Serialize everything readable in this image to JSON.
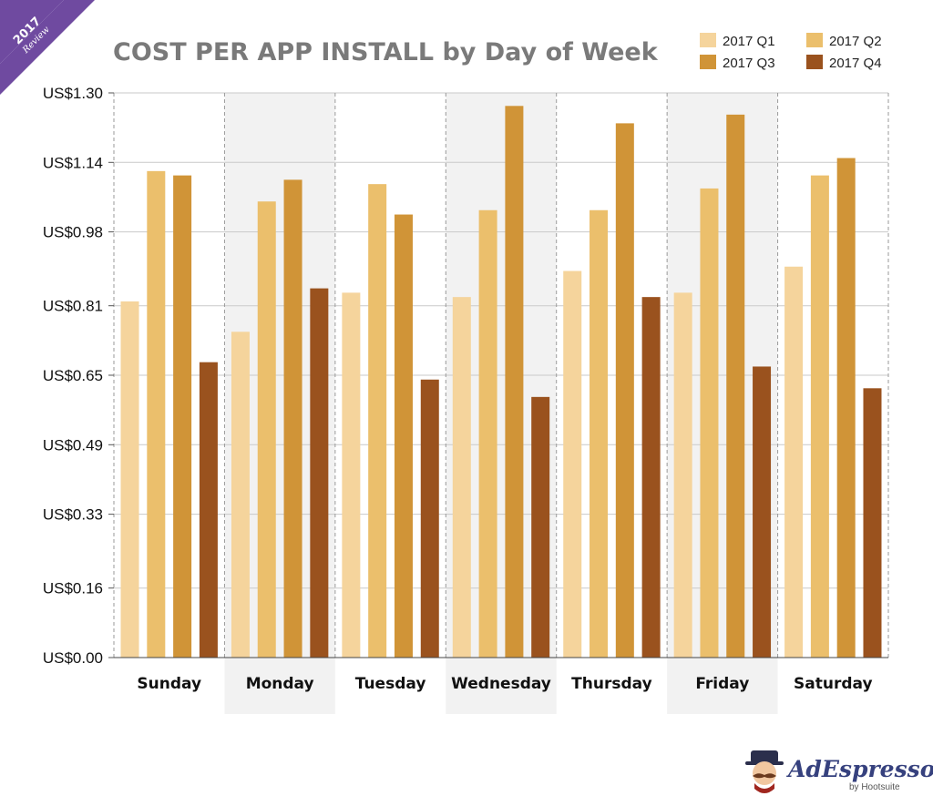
{
  "ribbon": {
    "year": "2017",
    "label": "Review"
  },
  "chart_data": {
    "type": "bar",
    "title": "COST PER APP INSTALL by Day of Week",
    "xlabel": "",
    "ylabel": "",
    "ylim": [
      0,
      1.3
    ],
    "grid": true,
    "legend_position": "top-right",
    "y_ticks": [
      {
        "value": 0.0,
        "label": "US$0.00"
      },
      {
        "value": 0.16,
        "label": "US$0.16"
      },
      {
        "value": 0.33,
        "label": "US$0.33"
      },
      {
        "value": 0.49,
        "label": "US$0.49"
      },
      {
        "value": 0.65,
        "label": "US$0.65"
      },
      {
        "value": 0.81,
        "label": "US$0.81"
      },
      {
        "value": 0.98,
        "label": "US$0.98"
      },
      {
        "value": 1.14,
        "label": "US$1.14"
      },
      {
        "value": 1.3,
        "label": "US$1.30"
      }
    ],
    "categories": [
      "Sunday",
      "Monday",
      "Tuesday",
      "Wednesday",
      "Thursday",
      "Friday",
      "Saturday"
    ],
    "shaded_categories": [
      "Monday",
      "Wednesday",
      "Friday"
    ],
    "series": [
      {
        "name": "2017 Q1",
        "color": "#f5d49c",
        "values": [
          0.82,
          0.75,
          0.84,
          0.83,
          0.89,
          0.84,
          0.9
        ]
      },
      {
        "name": "2017 Q2",
        "color": "#ebbf6c",
        "values": [
          1.12,
          1.05,
          1.09,
          1.03,
          1.03,
          1.08,
          1.11
        ]
      },
      {
        "name": "2017 Q3",
        "color": "#d09437",
        "values": [
          1.11,
          1.1,
          1.02,
          1.27,
          1.23,
          1.25,
          1.15
        ]
      },
      {
        "name": "2017 Q4",
        "color": "#9a521e",
        "values": [
          0.68,
          0.85,
          0.64,
          0.6,
          0.83,
          0.67,
          0.62
        ]
      }
    ]
  },
  "colors": {
    "title": "#7a7a7a",
    "ribbon": "#6f4aa0",
    "logo": "#36417e",
    "shade": "#f2f2f2"
  },
  "logo": {
    "name": "AdEspresso",
    "tagline": "by Hootsuite"
  }
}
